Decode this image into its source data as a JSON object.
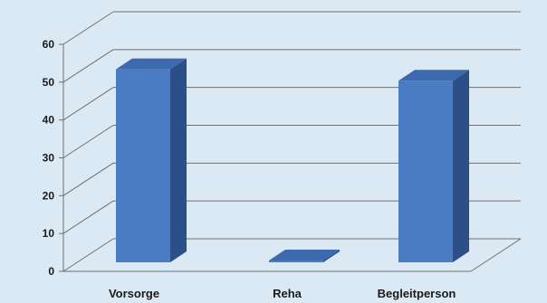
{
  "chart_data": {
    "type": "bar",
    "style": "3d-column",
    "title": "",
    "xlabel": "",
    "ylabel": "",
    "categories": [
      "Vorsorge",
      "Reha",
      "Begleitperson"
    ],
    "values": [
      51,
      1,
      48
    ],
    "ylim": [
      0,
      60
    ],
    "yticks": [
      0,
      10,
      20,
      30,
      40,
      50,
      60
    ],
    "grid": true,
    "legend": "none",
    "colors": {
      "bar_front": "#4a7cc4",
      "bar_top": "#3d6aae",
      "bar_side": "#2b4f86",
      "grid": "#6f6f6f",
      "background": "#dbe9f4"
    }
  }
}
